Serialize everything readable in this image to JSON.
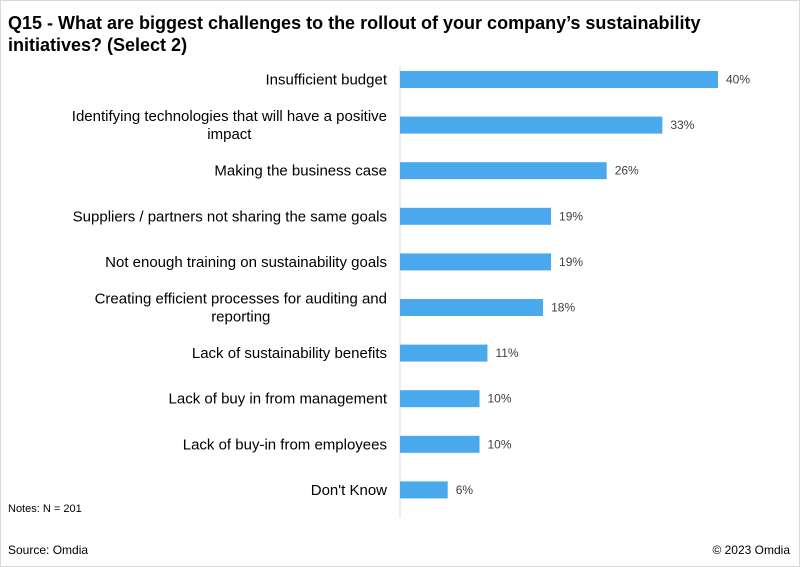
{
  "chart_data": {
    "type": "bar",
    "orientation": "horizontal",
    "title": "Q15 - What are biggest challenges to the rollout of your company’s sustainability initiatives? (Select 2)",
    "categories": [
      [
        "Insufficient budget"
      ],
      [
        "Identifying technologies that will have a positive",
        "impact"
      ],
      [
        "Making the business case"
      ],
      [
        "Suppliers / partners not sharing the same goals"
      ],
      [
        "Not enough training on sustainability goals"
      ],
      [
        "Creating efficient processes for auditing and",
        "reporting"
      ],
      [
        "Lack of sustainability benefits"
      ],
      [
        "Lack of buy in from management"
      ],
      [
        "Lack of buy-in from employees"
      ],
      [
        "Don't Know"
      ]
    ],
    "values": [
      40,
      33,
      26,
      19,
      19,
      18,
      11,
      10,
      10,
      6
    ],
    "value_labels": [
      "40%",
      "33%",
      "26%",
      "19%",
      "19%",
      "18%",
      "11%",
      "10%",
      "10%",
      "6%"
    ],
    "xlim": [
      0,
      40
    ],
    "bar_color": "#4aa8ec",
    "axis_color": "#d9d9d9",
    "grid": false,
    "legend": "none"
  },
  "footer": {
    "notes": "Notes: N = 201",
    "source": "Source: Omdia",
    "copyright": "© 2023 Omdia"
  }
}
